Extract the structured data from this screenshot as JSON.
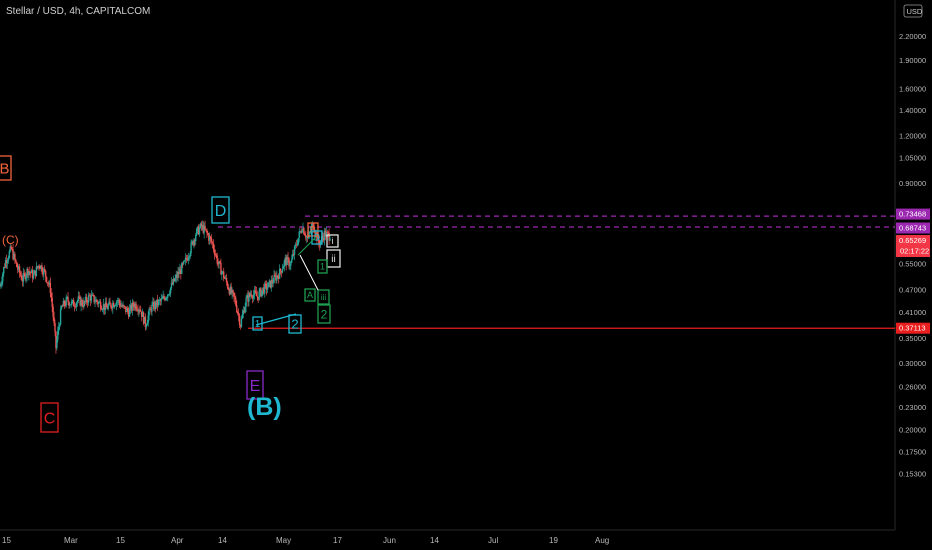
{
  "header": {
    "title": "Stellar / USD, 4h, CAPITALCOM"
  },
  "axis": {
    "currency_badge": "USD"
  },
  "chart_data": {
    "type": "candlestick",
    "title": "Stellar / USD, 4h, CAPITALCOM",
    "scale": "log",
    "ylim": [
      0.153,
      2.65
    ],
    "y_ticks": [
      {
        "v": 2.2,
        "label": "2.20000"
      },
      {
        "v": 1.9,
        "label": "1.90000"
      },
      {
        "v": 1.6,
        "label": "1.60000"
      },
      {
        "v": 1.4,
        "label": "1.40000"
      },
      {
        "v": 1.2,
        "label": "1.20000"
      },
      {
        "v": 1.05,
        "label": "1.05000"
      },
      {
        "v": 0.9,
        "label": "0.90000"
      },
      {
        "v": 0.55,
        "label": "0.55000"
      },
      {
        "v": 0.47,
        "label": "0.47000"
      },
      {
        "v": 0.41,
        "label": "0.41000"
      },
      {
        "v": 0.35,
        "label": "0.35000"
      },
      {
        "v": 0.3,
        "label": "0.30000"
      },
      {
        "v": 0.26,
        "label": "0.26000"
      },
      {
        "v": 0.23,
        "label": "0.23000"
      },
      {
        "v": 0.2,
        "label": "0.20000"
      },
      {
        "v": 0.175,
        "label": "0.17500"
      },
      {
        "v": 0.153,
        "label": "0.15300"
      }
    ],
    "x_ticks": [
      "15",
      "Mar",
      "15",
      "Apr",
      "14",
      "May",
      "17",
      "Jun",
      "14",
      "Jul",
      "19",
      "Aug"
    ],
    "price_tags": [
      {
        "v": 0.73468,
        "label": "0.73468",
        "color": "#9c27b0"
      },
      {
        "v": 0.68743,
        "label": "0.68743",
        "color": "#9c27b0"
      },
      {
        "v": 0.65269,
        "label": "0.65269",
        "sub": "02:17:22",
        "color": "#f23645"
      },
      {
        "v": 0.37113,
        "label": "0.37113",
        "color": "#e91e1e"
      }
    ],
    "levels": [
      {
        "v": 0.73468,
        "style": "dashed",
        "color": "#9c27b0",
        "from": "May"
      },
      {
        "v": 0.68743,
        "style": "dashed",
        "color": "#9c27b0",
        "from": "Apr 14"
      },
      {
        "v": 0.37113,
        "style": "solid",
        "color": "#e91e1e",
        "from": "Apr 24"
      }
    ],
    "wave_labels": [
      {
        "text": "B",
        "color": "#f0643c"
      },
      {
        "text": "(C)",
        "color": "#f0643c"
      },
      {
        "text": "C",
        "color": "#e02020"
      },
      {
        "text": "D",
        "color": "#1eb8d0"
      },
      {
        "text": "E",
        "color": "#8a2bc8"
      },
      {
        "text": "(B)",
        "color": "#1eb8d0"
      },
      {
        "text": "1",
        "color": "#1eb8d0"
      },
      {
        "text": "2",
        "color": "#1eb8d0"
      },
      {
        "text": "B",
        "color": "#f0643c"
      },
      {
        "text": "D",
        "color": "#1eb8d0"
      },
      {
        "text": "A",
        "color": "#1e9e50"
      },
      {
        "text": "i",
        "color": "#e0e0e0"
      },
      {
        "text": "ii",
        "color": "#e0e0e0"
      },
      {
        "text": "1",
        "color": "#1e9e50"
      },
      {
        "text": "iii",
        "color": "#1e9e50"
      },
      {
        "text": "2",
        "color": "#1e9e50"
      }
    ],
    "series_close_approx": [
      0.48,
      0.56,
      0.6,
      0.54,
      0.5,
      0.53,
      0.51,
      0.55,
      0.52,
      0.47,
      0.33,
      0.42,
      0.44,
      0.43,
      0.44,
      0.43,
      0.45,
      0.44,
      0.43,
      0.42,
      0.43,
      0.44,
      0.42,
      0.41,
      0.43,
      0.42,
      0.38,
      0.42,
      0.43,
      0.44,
      0.46,
      0.49,
      0.52,
      0.55,
      0.6,
      0.66,
      0.69,
      0.66,
      0.62,
      0.55,
      0.51,
      0.47,
      0.44,
      0.38,
      0.44,
      0.46,
      0.45,
      0.47,
      0.48,
      0.5,
      0.52,
      0.56,
      0.55,
      0.62,
      0.69,
      0.64,
      0.7,
      0.62,
      0.66,
      0.65
    ],
    "colors": {
      "up": "#26a69a",
      "down": "#ef5350",
      "grid": "#1a1a1a",
      "axis_text": "#b8b8b8"
    }
  }
}
